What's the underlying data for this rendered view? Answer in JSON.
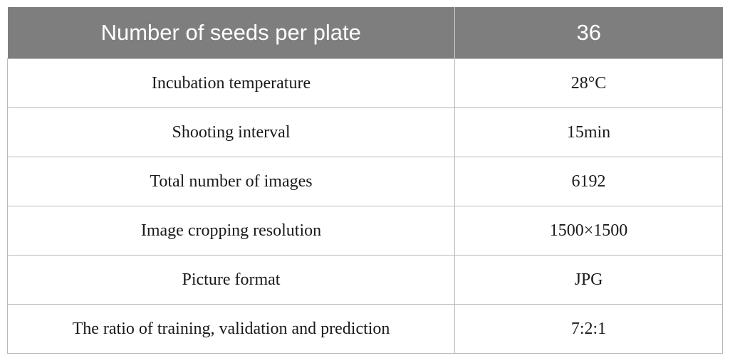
{
  "table": {
    "header": {
      "label": "Number of seeds per plate",
      "value": "36"
    },
    "rows": [
      {
        "label": "Incubation temperature",
        "value": "28°C"
      },
      {
        "label": "Shooting interval",
        "value": "15min"
      },
      {
        "label": "Total number of images",
        "value": "6192"
      },
      {
        "label": "Image cropping resolution",
        "value": "1500×1500"
      },
      {
        "label": "Picture format",
        "value": "JPG"
      },
      {
        "label": "The ratio of training, validation and prediction",
        "value": "7:2:1"
      }
    ]
  },
  "colors": {
    "header_background": "#7d7e7d",
    "header_text": "#ffffff",
    "border": "#b9b9b9"
  }
}
